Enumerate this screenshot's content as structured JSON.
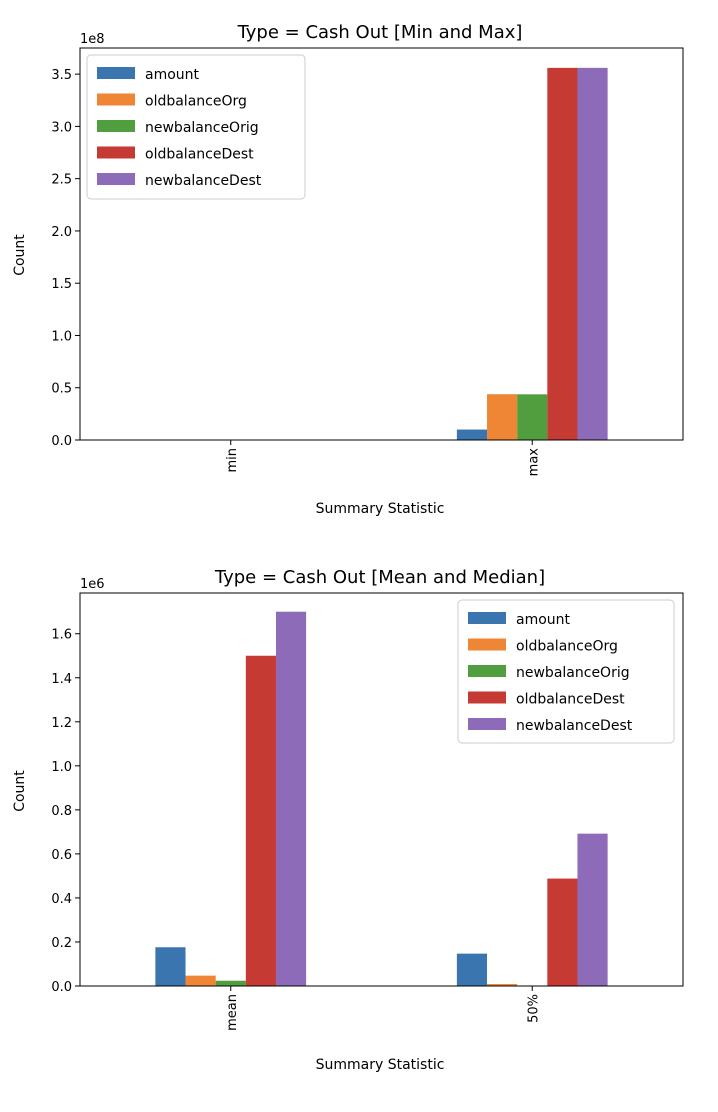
{
  "chart_data": [
    {
      "type": "bar",
      "title": "Type = Cash Out [Min and Max]",
      "xlabel": "Summary Statistic",
      "ylabel": "Count",
      "y_offset_label": "1e8",
      "y_scale": 100000000,
      "categories": [
        "min",
        "max"
      ],
      "ylim": [
        0,
        375000000
      ],
      "yticks": [
        0,
        50000000,
        100000000,
        150000000,
        200000000,
        250000000,
        300000000,
        350000000
      ],
      "ytick_labels": [
        "0.0",
        "0.5",
        "1.0",
        "1.5",
        "2.0",
        "2.5",
        "3.0",
        "3.5"
      ],
      "legend_position": "upper-left",
      "series": [
        {
          "name": "amount",
          "color": "#3a75af",
          "values": [
            0,
            10000000
          ]
        },
        {
          "name": "oldbalanceOrg",
          "color": "#ef8636",
          "values": [
            0,
            43800000
          ]
        },
        {
          "name": "newbalanceOrig",
          "color": "#519e3e",
          "values": [
            0,
            43700000
          ]
        },
        {
          "name": "oldbalanceDest",
          "color": "#c53a32",
          "values": [
            0,
            356000000
          ]
        },
        {
          "name": "newbalanceDest",
          "color": "#8d6bb8",
          "values": [
            0,
            356000000
          ]
        }
      ]
    },
    {
      "type": "bar",
      "title": "Type = Cash Out [Mean and Median]",
      "xlabel": "Summary Statistic",
      "ylabel": "Count",
      "y_offset_label": "1e6",
      "y_scale": 1000000,
      "categories": [
        "mean",
        "50%"
      ],
      "ylim": [
        0,
        1785000
      ],
      "yticks": [
        0,
        200000,
        400000,
        600000,
        800000,
        1000000,
        1200000,
        1400000,
        1600000
      ],
      "ytick_labels": [
        "0.0",
        "0.2",
        "0.4",
        "0.6",
        "0.8",
        "1.0",
        "1.2",
        "1.4",
        "1.6"
      ],
      "legend_position": "upper-right",
      "series": [
        {
          "name": "amount",
          "color": "#3a75af",
          "values": [
            176000,
            147000
          ]
        },
        {
          "name": "oldbalanceOrg",
          "color": "#ef8636",
          "values": [
            47000,
            9000
          ]
        },
        {
          "name": "newbalanceOrig",
          "color": "#519e3e",
          "values": [
            24000,
            0
          ]
        },
        {
          "name": "oldbalanceDest",
          "color": "#c53a32",
          "values": [
            1500000,
            488000
          ]
        },
        {
          "name": "newbalanceDest",
          "color": "#8d6bb8",
          "values": [
            1700000,
            692000
          ]
        }
      ]
    }
  ]
}
